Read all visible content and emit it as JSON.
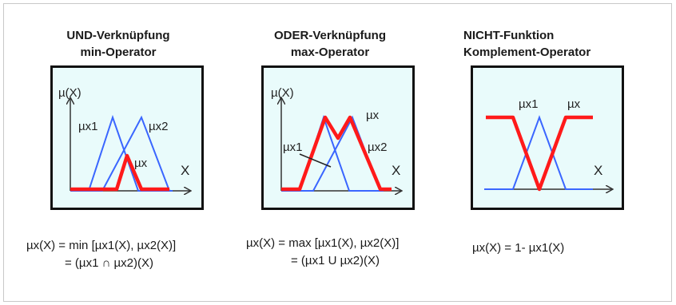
{
  "panels": [
    {
      "title_line1": "UND-Verknüpfung",
      "title_line2": "min-Operator",
      "y_axis_label": "µ(X)",
      "x_axis_label": "X",
      "curve_labels": {
        "mu_x1": "µx1",
        "mu_x2": "µx2",
        "mu_x": "µx"
      },
      "formula_line1": "µx(X) = min [µx1(X), µx2(X)]",
      "formula_line2": "= (µx1 ∩ µx2)(X)"
    },
    {
      "title_line1": "ODER-Verknüpfung",
      "title_line2": "max-Operator",
      "y_axis_label": "µ(X)",
      "x_axis_label": "X",
      "curve_labels": {
        "mu_x1": "µx1",
        "mu_x2": "µx2",
        "mu_x": "µx"
      },
      "formula_line1": "µx(X) = max [µx1(X), µx2(X)]",
      "formula_line2": "= (µx1 U µx2)(X)"
    },
    {
      "title_line1": "NICHT-Funktion",
      "title_line2": "Komplement-Operator",
      "x_axis_label": "X",
      "curve_labels": {
        "mu_x1": "µx1",
        "mu_x": "µx"
      },
      "formula_line1": "µx(X) = 1- µx1(X)"
    }
  ],
  "colors": {
    "result_curve": "#ff1a1a",
    "input_curve": "#3a66ff",
    "panel_fill": "#e9fbfb",
    "axis": "#333333"
  }
}
